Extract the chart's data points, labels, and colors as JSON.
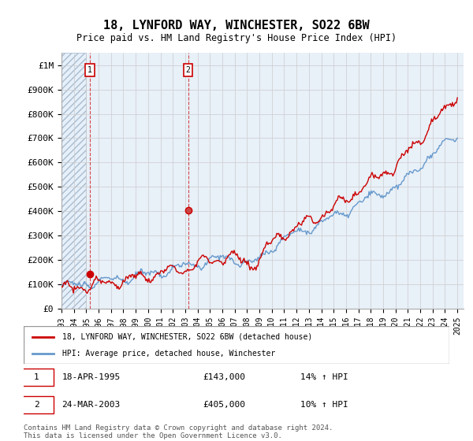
{
  "title": "18, LYNFORD WAY, WINCHESTER, SO22 6BW",
  "subtitle": "Price paid vs. HM Land Registry's House Price Index (HPI)",
  "ylabel_ticks": [
    "£0",
    "£100K",
    "£200K",
    "£300K",
    "£400K",
    "£500K",
    "£600K",
    "£700K",
    "£800K",
    "£900K",
    "£1M"
  ],
  "ytick_values": [
    0,
    100000,
    200000,
    300000,
    400000,
    500000,
    600000,
    700000,
    800000,
    900000,
    1000000
  ],
  "ylim": [
    0,
    1050000
  ],
  "xlim_start": 1993.0,
  "xlim_end": 2025.5,
  "sale1_date": 1995.3,
  "sale1_price": 143000,
  "sale2_date": 2003.23,
  "sale2_price": 405000,
  "legend_label_red": "18, LYNFORD WAY, WINCHESTER, SO22 6BW (detached house)",
  "legend_label_blue": "HPI: Average price, detached house, Winchester",
  "table_row1": "1    18-APR-1995    £143,000    14% ↑ HPI",
  "table_row2": "2    24-MAR-2003    £405,000    10% ↑ HPI",
  "footnote": "Contains HM Land Registry data © Crown copyright and database right 2024.\nThis data is licensed under the Open Government Licence v3.0.",
  "line_color_red": "#cc0000",
  "line_color_blue": "#6699cc",
  "hatch_color": "#ccddee",
  "bg_left_hatch": "#ddeeff",
  "grid_color": "#cccccc",
  "xtick_years": [
    1993,
    1994,
    1995,
    1996,
    1997,
    1998,
    1999,
    2000,
    2001,
    2002,
    2003,
    2004,
    2005,
    2006,
    2007,
    2008,
    2009,
    2010,
    2011,
    2012,
    2013,
    2014,
    2015,
    2016,
    2017,
    2018,
    2019,
    2020,
    2021,
    2022,
    2023,
    2024,
    2025
  ]
}
